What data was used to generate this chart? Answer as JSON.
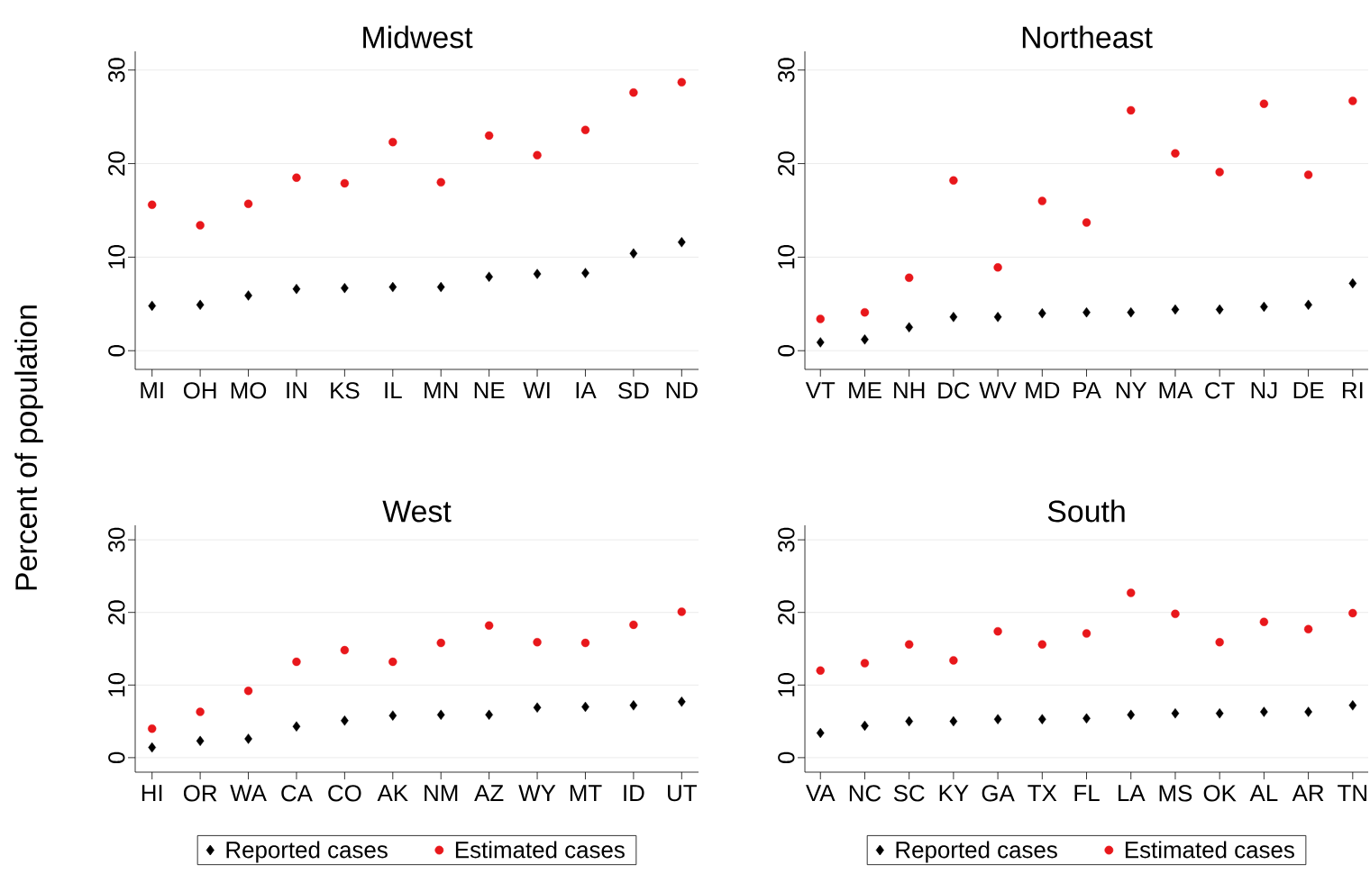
{
  "chart_data": [
    {
      "type": "scatter",
      "title": "Midwest",
      "ylabel": "Percent of population",
      "categories": [
        "MI",
        "OH",
        "MO",
        "IN",
        "KS",
        "IL",
        "MN",
        "NE",
        "WI",
        "IA",
        "SD",
        "ND"
      ],
      "ylim": [
        -2,
        32
      ],
      "yticks": [
        0,
        10,
        20,
        30
      ],
      "grid": "y",
      "legend": false,
      "series": [
        {
          "color": "#000000",
          "marker": "diamond",
          "values": [
            4.8,
            4.9,
            5.9,
            6.6,
            6.7,
            6.8,
            6.8,
            7.9,
            8.2,
            8.3,
            10.4,
            11.6
          ]
        },
        {
          "color": "#e8171b",
          "marker": "circle",
          "values": [
            15.6,
            13.4,
            15.7,
            18.5,
            17.9,
            22.3,
            18.0,
            23.0,
            20.9,
            23.6,
            27.6,
            28.7
          ]
        }
      ]
    },
    {
      "type": "scatter",
      "title": "Northeast",
      "categories": [
        "VT",
        "ME",
        "NH",
        "DC",
        "WV",
        "MD",
        "PA",
        "NY",
        "MA",
        "CT",
        "NJ",
        "DE",
        "RI"
      ],
      "ylim": [
        -2,
        32
      ],
      "yticks": [
        0,
        10,
        20,
        30
      ],
      "grid": "y",
      "legend": false,
      "series": [
        {
          "color": "#000000",
          "marker": "diamond",
          "values": [
            0.9,
            1.2,
            2.5,
            3.6,
            3.6,
            4.0,
            4.1,
            4.1,
            4.4,
            4.4,
            4.7,
            4.9,
            7.2
          ]
        },
        {
          "color": "#e8171b",
          "marker": "circle",
          "values": [
            3.4,
            4.1,
            7.8,
            18.2,
            8.9,
            16.0,
            13.7,
            25.7,
            21.1,
            19.1,
            26.4,
            18.8,
            26.7
          ]
        }
      ]
    },
    {
      "type": "scatter",
      "title": "West",
      "categories": [
        "HI",
        "OR",
        "WA",
        "CA",
        "CO",
        "AK",
        "NM",
        "AZ",
        "WY",
        "MT",
        "ID",
        "UT"
      ],
      "ylim": [
        -2,
        32
      ],
      "yticks": [
        0,
        10,
        20,
        30
      ],
      "grid": "y",
      "legend": "bottom",
      "series": [
        {
          "name": "Reported cases",
          "color": "#000000",
          "marker": "diamond",
          "values": [
            1.4,
            2.3,
            2.6,
            4.3,
            5.1,
            5.8,
            5.9,
            5.9,
            6.9,
            7.0,
            7.2,
            7.7
          ]
        },
        {
          "name": "Estimated cases",
          "color": "#e8171b",
          "marker": "circle",
          "values": [
            4.0,
            6.3,
            9.2,
            13.2,
            14.8,
            13.2,
            15.8,
            18.2,
            15.9,
            15.8,
            18.3,
            20.1
          ]
        }
      ]
    },
    {
      "type": "scatter",
      "title": "South",
      "categories": [
        "VA",
        "NC",
        "SC",
        "KY",
        "GA",
        "TX",
        "FL",
        "LA",
        "MS",
        "OK",
        "AL",
        "AR",
        "TN"
      ],
      "ylim": [
        -2,
        32
      ],
      "yticks": [
        0,
        10,
        20,
        30
      ],
      "grid": "y",
      "legend": "bottom",
      "series": [
        {
          "name": "Reported cases",
          "color": "#000000",
          "marker": "diamond",
          "values": [
            3.4,
            4.4,
            5.0,
            5.0,
            5.3,
            5.3,
            5.4,
            5.9,
            6.1,
            6.1,
            6.3,
            6.3,
            7.2
          ]
        },
        {
          "name": "Estimated cases",
          "color": "#e8171b",
          "marker": "circle",
          "values": [
            12.0,
            13.0,
            15.6,
            13.4,
            17.4,
            15.6,
            17.1,
            22.7,
            19.8,
            15.9,
            18.7,
            17.7,
            19.9
          ]
        }
      ]
    }
  ]
}
